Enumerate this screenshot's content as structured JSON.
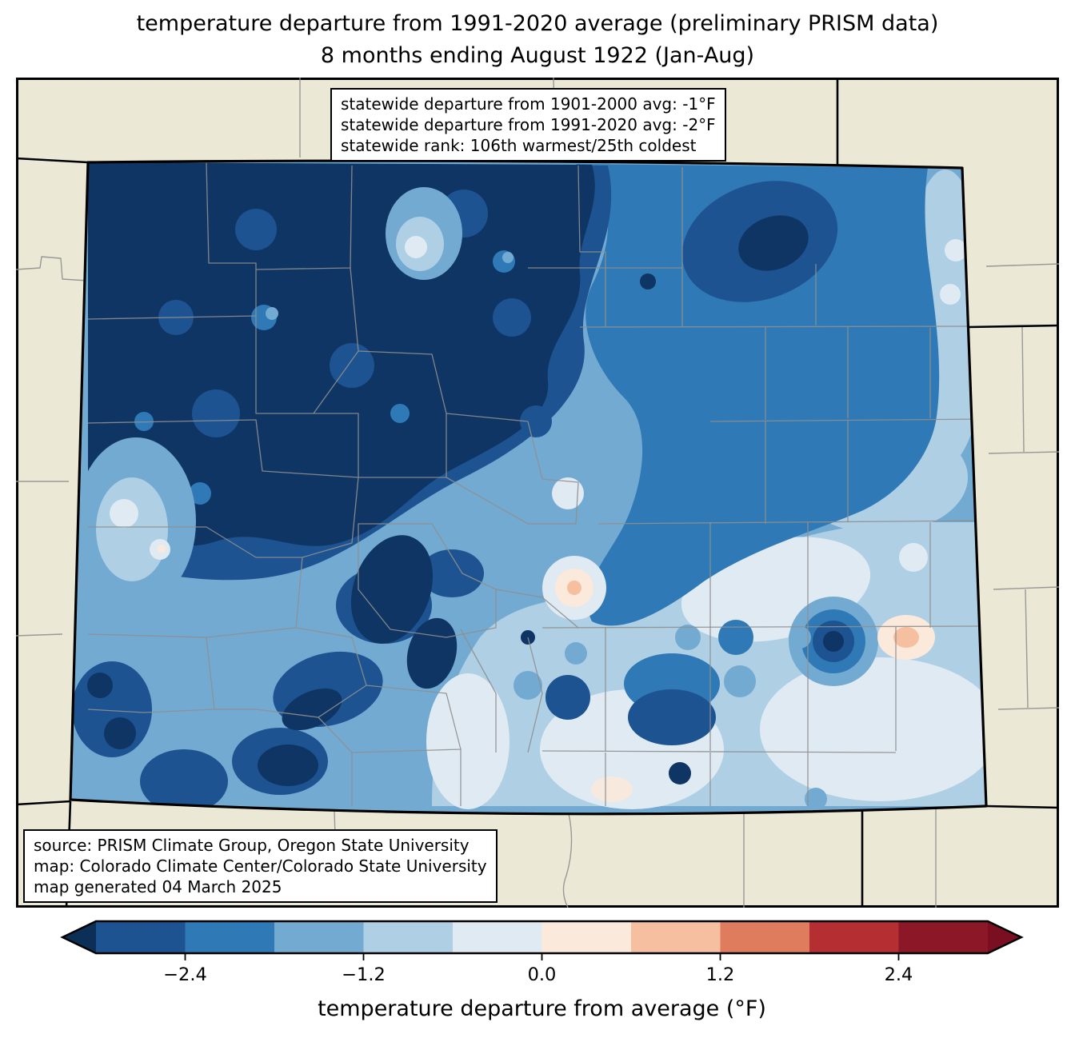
{
  "title": {
    "line1": "temperature departure from 1991-2020 average (preliminary PRISM data)",
    "line2": "8 months ending August 1922 (Jan-Aug)"
  },
  "stats_box": {
    "lines": [
      "statewide departure from 1901-2000 avg: -1°F",
      "statewide departure from 1991-2020 avg: -2°F",
      "statewide rank: 106th warmest/25th coldest"
    ]
  },
  "source_box": {
    "lines": [
      "source: PRISM Climate Group, Oregon State University",
      "map: Colorado Climate Center/Colorado State University",
      "map generated 04 March 2025"
    ]
  },
  "colorbar": {
    "label": "temperature departure from average (°F)",
    "tick_labels": [
      "−2.4",
      "−1.2",
      "0.0",
      "1.2",
      "2.4"
    ],
    "tick_values": [
      -2.4,
      -1.2,
      0.0,
      1.2,
      2.4
    ],
    "vmin": -3.0,
    "vmax": 3.0,
    "boundaries": [
      -3.0,
      -2.4,
      -1.8,
      -1.2,
      -0.6,
      0.0,
      0.6,
      1.2,
      1.8,
      2.4,
      3.0
    ],
    "segment_colors": [
      "#1d5391",
      "#2f79b6",
      "#73aad2",
      "#afcfe4",
      "#e0eaf3",
      "#fbe9dc",
      "#f6bf9f",
      "#df7c5e",
      "#b52e31",
      "#8c1727"
    ],
    "under_color": "#0c2f58",
    "over_color": "#7a0f22"
  },
  "palette": {
    "map_dark_navy": "#0f3565",
    "map_blue1": "#1d5391",
    "map_blue2": "#2f79b6",
    "map_blue3": "#73aad2",
    "map_blue4": "#afcfe4",
    "map_blue5": "#e0eaf3",
    "map_peach_light": "#fbe9dc",
    "map_peach": "#f6bf9f",
    "land_beige": "#ebe9d6",
    "county_gray": "#8f8f8f"
  }
}
